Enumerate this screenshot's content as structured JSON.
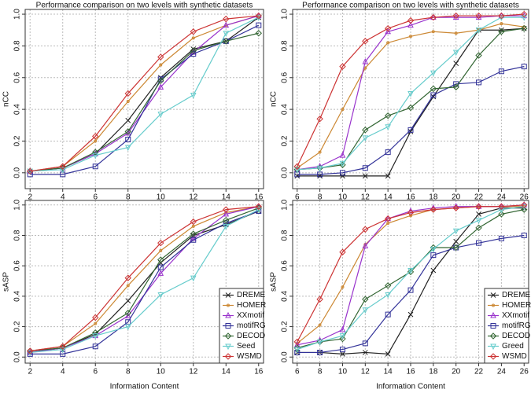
{
  "chart_data": [
    {
      "type": "line",
      "title": "Performance comparison on two levels with synthetic datasets",
      "y_label": "nCC",
      "x": [
        2,
        4,
        6,
        8,
        10,
        12,
        14,
        16
      ],
      "xlim": [
        1.7,
        16.3
      ],
      "xticks": [
        2,
        4,
        6,
        8,
        10,
        12,
        14,
        16
      ],
      "ylim": [
        -0.1,
        1.03
      ],
      "yticks": [
        {
          "value": 0,
          "label": "0.0"
        },
        0.2,
        0.4,
        0.6,
        0.8,
        {
          "value": 1,
          "label": "1.0"
        }
      ],
      "grid": true,
      "series": [
        {
          "color": "#222222",
          "marker": "x",
          "values": [
            0.01,
            0.03,
            0.12,
            0.33,
            0.6,
            0.78,
            0.83,
            0.98
          ]
        },
        {
          "color": "#cc8833",
          "marker": "circle",
          "values": [
            0.01,
            0.04,
            0.2,
            0.45,
            0.68,
            0.85,
            0.93,
            0.99
          ]
        },
        {
          "color": "#9933cc",
          "marker": "triangle",
          "values": [
            0.01,
            0.03,
            0.12,
            0.25,
            0.54,
            0.76,
            0.93,
            0.99
          ]
        },
        {
          "color": "#333399",
          "marker": "square",
          "values": [
            -0.01,
            -0.01,
            0.04,
            0.21,
            0.59,
            0.75,
            0.83,
            0.93
          ]
        },
        {
          "color": "#336633",
          "marker": "diamond",
          "values": [
            0.01,
            0.03,
            0.13,
            0.26,
            0.58,
            0.77,
            0.83,
            0.88
          ]
        },
        {
          "color": "#66cccc",
          "marker": "itriangle",
          "values": [
            0.01,
            0.02,
            0.11,
            0.16,
            0.37,
            0.49,
            0.88,
            0.98
          ]
        },
        {
          "color": "#cc3333",
          "marker": "diamond",
          "values": [
            0.01,
            0.04,
            0.23,
            0.5,
            0.73,
            0.89,
            0.97,
            0.99
          ]
        }
      ]
    },
    {
      "type": "line",
      "title": "Performance comparison on two levels with synthetic datasets",
      "y_label": "nCC",
      "x": [
        6,
        8,
        10,
        12,
        14,
        16,
        18,
        20,
        22,
        24,
        26
      ],
      "xlim": [
        5.6,
        26.4
      ],
      "xticks": [
        6,
        8,
        10,
        12,
        14,
        16,
        18,
        20,
        22,
        24,
        26
      ],
      "ylim": [
        -0.1,
        1.03
      ],
      "yticks": [
        {
          "value": 0,
          "label": "0.0"
        },
        0.2,
        0.4,
        0.6,
        0.8,
        {
          "value": 1,
          "label": "1.0"
        }
      ],
      "grid": true,
      "series": [
        {
          "color": "#222222",
          "marker": "x",
          "values": [
            -0.02,
            -0.02,
            -0.02,
            -0.02,
            -0.02,
            0.26,
            0.48,
            0.69,
            0.9,
            0.9,
            0.91
          ]
        },
        {
          "color": "#cc8833",
          "marker": "circle",
          "values": [
            0.03,
            0.13,
            0.4,
            0.66,
            0.82,
            0.86,
            0.89,
            0.88,
            0.9,
            0.94,
            0.92
          ]
        },
        {
          "color": "#9933cc",
          "marker": "triangle",
          "values": [
            0.02,
            0.04,
            0.11,
            0.7,
            0.89,
            0.93,
            0.98,
            0.98,
            0.98,
            0.99,
            0.99
          ]
        },
        {
          "color": "#333399",
          "marker": "square",
          "values": [
            -0.01,
            -0.01,
            0.0,
            0.03,
            0.13,
            0.27,
            0.49,
            0.56,
            0.57,
            0.64,
            0.67
          ]
        },
        {
          "color": "#336633",
          "marker": "diamond",
          "values": [
            0.02,
            0.03,
            0.05,
            0.27,
            0.36,
            0.41,
            0.53,
            0.54,
            0.74,
            0.89,
            0.91
          ]
        },
        {
          "color": "#66cccc",
          "marker": "itriangle",
          "values": [
            0.02,
            0.03,
            0.06,
            0.22,
            0.29,
            0.5,
            0.63,
            0.76,
            0.9,
            0.98,
            0.98
          ]
        },
        {
          "color": "#cc3333",
          "marker": "diamond",
          "values": [
            0.04,
            0.34,
            0.67,
            0.83,
            0.91,
            0.96,
            0.98,
            0.99,
            0.99,
            0.99,
            1.0
          ]
        }
      ]
    },
    {
      "type": "line",
      "y_label": "sASP",
      "x_label": "Information Content",
      "legend": "lower right",
      "x": [
        2,
        4,
        6,
        8,
        10,
        12,
        14,
        16
      ],
      "xlim": [
        1.7,
        16.3
      ],
      "xticks": [
        2,
        4,
        6,
        8,
        10,
        12,
        14,
        16
      ],
      "ylim": [
        -0.04,
        1.03
      ],
      "yticks": [
        {
          "value": 0,
          "label": "0.0"
        },
        0.2,
        0.4,
        0.6,
        0.8,
        {
          "value": 1,
          "label": "1.0"
        }
      ],
      "grid": true,
      "series": [
        {
          "name": "DREME",
          "color": "#222222",
          "marker": "x",
          "values": [
            0.03,
            0.06,
            0.15,
            0.37,
            0.62,
            0.8,
            0.87,
            0.96
          ]
        },
        {
          "name": "HOMER",
          "color": "#cc8833",
          "marker": "circle",
          "values": [
            0.04,
            0.07,
            0.22,
            0.47,
            0.7,
            0.86,
            0.95,
            0.99
          ]
        },
        {
          "name": "XXmotif",
          "color": "#9933cc",
          "marker": "triangle",
          "values": [
            0.03,
            0.06,
            0.14,
            0.27,
            0.55,
            0.78,
            0.94,
            0.99
          ]
        },
        {
          "name": "motifRG",
          "color": "#333399",
          "marker": "square",
          "values": [
            0.02,
            0.02,
            0.07,
            0.23,
            0.59,
            0.77,
            0.88,
            0.96
          ]
        },
        {
          "name": "DECOD",
          "color": "#336633",
          "marker": "diamond",
          "values": [
            0.04,
            0.06,
            0.16,
            0.29,
            0.64,
            0.81,
            0.9,
            0.98
          ]
        },
        {
          "name": "Seed",
          "color": "#66cccc",
          "marker": "itriangle",
          "values": [
            0.03,
            0.05,
            0.14,
            0.2,
            0.41,
            0.52,
            0.86,
            0.97
          ]
        },
        {
          "name": "WSMD",
          "color": "#cc3333",
          "marker": "diamond",
          "values": [
            0.04,
            0.07,
            0.26,
            0.52,
            0.75,
            0.89,
            0.97,
            0.99
          ]
        }
      ]
    },
    {
      "type": "line",
      "y_label": "sASP",
      "x_label": "Information Content",
      "legend": "lower right",
      "x": [
        6,
        8,
        10,
        12,
        14,
        16,
        18,
        20,
        22,
        24,
        26
      ],
      "xlim": [
        5.6,
        26.4
      ],
      "xticks": [
        6,
        8,
        10,
        12,
        14,
        16,
        18,
        20,
        22,
        24,
        26
      ],
      "ylim": [
        -0.04,
        1.03
      ],
      "yticks": [
        {
          "value": 0,
          "label": "0.0"
        },
        0.2,
        0.4,
        0.6,
        0.8,
        {
          "value": 1,
          "label": "1.0"
        }
      ],
      "grid": true,
      "series": [
        {
          "name": "DREME",
          "color": "#222222",
          "marker": "x",
          "values": [
            0.03,
            0.03,
            0.02,
            0.03,
            0.02,
            0.28,
            0.57,
            0.76,
            0.94,
            0.98,
            0.98
          ]
        },
        {
          "name": "HOMER",
          "color": "#cc8833",
          "marker": "circle",
          "values": [
            0.09,
            0.21,
            0.46,
            0.74,
            0.88,
            0.93,
            0.97,
            0.98,
            0.99,
            0.99,
            0.99
          ]
        },
        {
          "name": "XXmotif",
          "color": "#9933cc",
          "marker": "triangle",
          "values": [
            0.08,
            0.11,
            0.18,
            0.73,
            0.91,
            0.96,
            0.98,
            0.99,
            0.99,
            0.99,
            1.0
          ]
        },
        {
          "name": "motifRG",
          "color": "#333399",
          "marker": "square",
          "values": [
            0.03,
            0.03,
            0.05,
            0.09,
            0.28,
            0.44,
            0.67,
            0.72,
            0.75,
            0.78,
            0.8
          ]
        },
        {
          "name": "DECOD",
          "color": "#336633",
          "marker": "diamond",
          "values": [
            0.06,
            0.1,
            0.12,
            0.38,
            0.47,
            0.56,
            0.72,
            0.72,
            0.85,
            0.94,
            0.97
          ]
        },
        {
          "name": "Greed",
          "color": "#66cccc",
          "marker": "itriangle",
          "values": [
            0.05,
            0.1,
            0.14,
            0.31,
            0.41,
            0.57,
            0.71,
            0.83,
            0.9,
            0.97,
            0.99
          ]
        },
        {
          "name": "WSMD",
          "color": "#cc3333",
          "marker": "diamond",
          "values": [
            0.1,
            0.38,
            0.69,
            0.84,
            0.91,
            0.95,
            0.97,
            0.98,
            0.99,
            0.99,
            1.0
          ]
        }
      ]
    }
  ]
}
